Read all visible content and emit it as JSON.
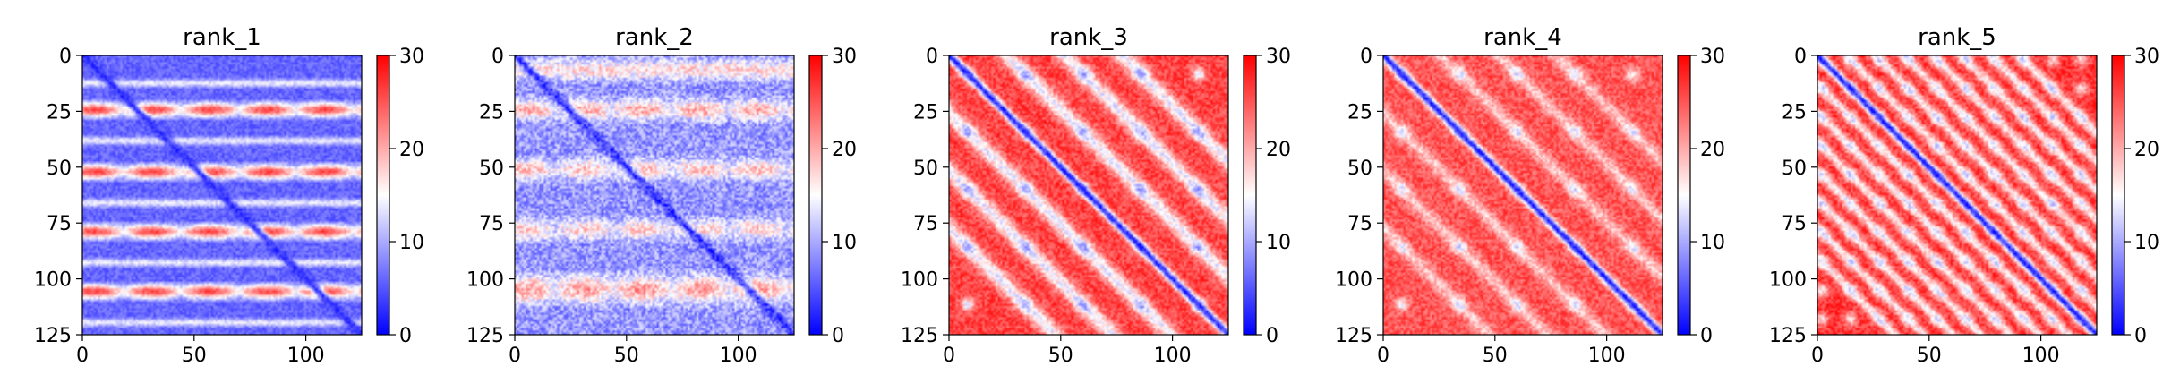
{
  "chart_data": [
    {
      "type": "heatmap",
      "title": "rank_1",
      "x_ticks": [
        0,
        50,
        100
      ],
      "y_ticks": [
        0,
        25,
        50,
        75,
        100,
        125
      ],
      "xlim": [
        0,
        125
      ],
      "ylim": [
        125,
        0
      ],
      "colorbar": {
        "min": 0,
        "max": 30,
        "ticks": [
          0,
          10,
          20,
          30
        ],
        "colormap": "bwr"
      },
      "pattern": {
        "diagonal_value": 3,
        "background_value": 6,
        "noise": 2,
        "bands": [
          {
            "axis": "y",
            "center": 24,
            "width": 2.2,
            "value": 26,
            "modulate_period": 26
          },
          {
            "axis": "y",
            "center": 52,
            "width": 2.2,
            "value": 26,
            "modulate_period": 26
          },
          {
            "axis": "y",
            "center": 79,
            "width": 2.2,
            "value": 26,
            "modulate_period": 26
          },
          {
            "axis": "y",
            "center": 106,
            "width": 2.2,
            "value": 26,
            "modulate_period": 26
          },
          {
            "axis": "y",
            "center": 12,
            "width": 1.2,
            "value": 14,
            "modulate_period": 0
          },
          {
            "axis": "y",
            "center": 38,
            "width": 1.2,
            "value": 14,
            "modulate_period": 0
          },
          {
            "axis": "y",
            "center": 66,
            "width": 1.2,
            "value": 14,
            "modulate_period": 0
          },
          {
            "axis": "y",
            "center": 93,
            "width": 1.2,
            "value": 14,
            "modulate_period": 0
          },
          {
            "axis": "y",
            "center": 120,
            "width": 1.2,
            "value": 14,
            "modulate_period": 0
          }
        ]
      }
    },
    {
      "type": "heatmap",
      "title": "rank_2",
      "x_ticks": [
        0,
        50,
        100
      ],
      "y_ticks": [
        0,
        25,
        50,
        75,
        100,
        125
      ],
      "xlim": [
        0,
        125
      ],
      "ylim": [
        125,
        0
      ],
      "colorbar": {
        "min": 0,
        "max": 30,
        "ticks": [
          0,
          10,
          20,
          30
        ],
        "colormap": "bwr"
      },
      "pattern": {
        "diagonal_value": 3,
        "background_value": 9,
        "noise": 4,
        "bands": [
          {
            "axis": "y",
            "center": 24,
            "width": 3,
            "value": 20,
            "modulate_period": 26
          },
          {
            "axis": "y",
            "center": 51,
            "width": 3,
            "value": 19,
            "modulate_period": 26
          },
          {
            "axis": "y",
            "center": 78,
            "width": 3,
            "value": 18,
            "modulate_period": 26
          },
          {
            "axis": "y",
            "center": 105,
            "width": 4,
            "value": 21,
            "modulate_period": 26
          },
          {
            "axis": "y",
            "center": 6,
            "width": 3,
            "value": 17,
            "modulate_period": 0
          }
        ]
      }
    },
    {
      "type": "heatmap",
      "title": "rank_3",
      "x_ticks": [
        0,
        50,
        100
      ],
      "y_ticks": [
        0,
        25,
        50,
        75,
        100,
        125
      ],
      "xlim": [
        0,
        125
      ],
      "ylim": [
        125,
        0
      ],
      "colorbar": {
        "min": 0,
        "max": 30,
        "ticks": [
          0,
          10,
          20,
          30
        ],
        "colormap": "bwr"
      },
      "pattern": {
        "diagonal_value": 2,
        "background_value": 26,
        "noise": 3,
        "stripes": [
          26,
          52,
          78
        ],
        "stripe_value": 12,
        "stripe_width": 3.5,
        "spot_period": 26,
        "spot_value": 6
      }
    },
    {
      "type": "heatmap",
      "title": "rank_4",
      "x_ticks": [
        0,
        50,
        100
      ],
      "y_ticks": [
        0,
        25,
        50,
        75,
        100,
        125
      ],
      "xlim": [
        0,
        125
      ],
      "ylim": [
        125,
        0
      ],
      "colorbar": {
        "min": 0,
        "max": 30,
        "ticks": [
          0,
          10,
          20,
          30
        ],
        "colormap": "bwr"
      },
      "pattern": {
        "diagonal_value": 2,
        "background_value": 25,
        "noise": 3,
        "stripes": [
          26,
          52,
          78
        ],
        "stripe_value": 17,
        "stripe_width": 3,
        "spot_period": 26,
        "spot_value": 9
      }
    },
    {
      "type": "heatmap",
      "title": "rank_5",
      "x_ticks": [
        0,
        50,
        100
      ],
      "y_ticks": [
        0,
        25,
        50,
        75,
        100,
        125
      ],
      "xlim": [
        0,
        125
      ],
      "ylim": [
        125,
        0
      ],
      "colorbar": {
        "min": 0,
        "max": 30,
        "ticks": [
          0,
          10,
          20,
          30
        ],
        "colormap": "bwr"
      },
      "pattern": {
        "diagonal_value": 2,
        "background_value": 27,
        "noise": 3,
        "stripes": [
          13,
          26,
          39,
          52,
          65,
          78,
          91
        ],
        "stripe_value": 14,
        "stripe_width": 2.2,
        "spot_period": 13,
        "spot_value": 10
      }
    }
  ]
}
